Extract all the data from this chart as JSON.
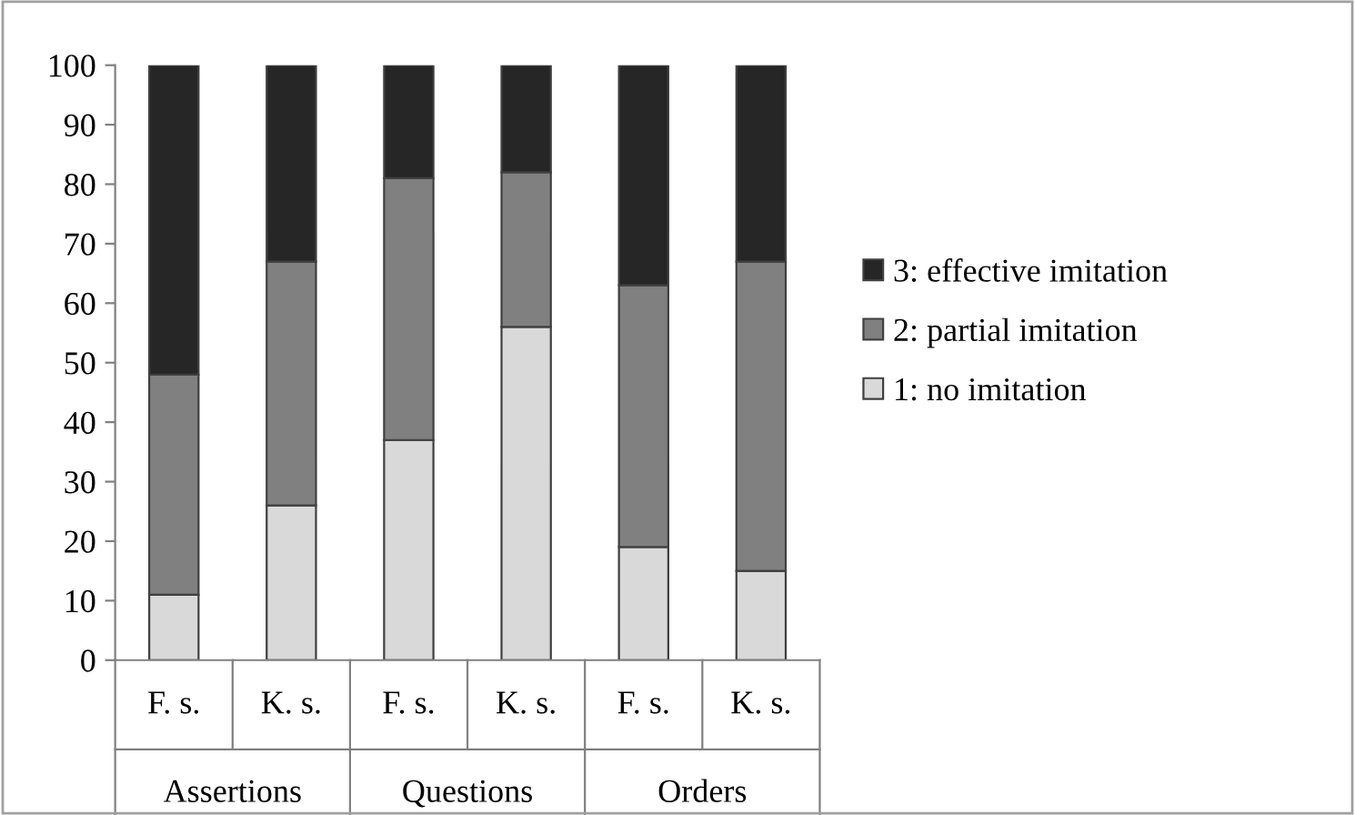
{
  "chart_data": {
    "type": "bar",
    "stacked": true,
    "categories": [
      "F. s.",
      "K. s.",
      "F. s.",
      "K. s.",
      "F. s.",
      "K. s."
    ],
    "annotations": [
      "Assertions",
      "Questions",
      "Orders"
    ],
    "series": [
      {
        "name": "1: no imitation",
        "color": "#d9d9d9",
        "values": [
          11,
          26,
          37,
          56,
          19,
          15
        ]
      },
      {
        "name": "2: partial imitation",
        "color": "#808080",
        "values": [
          37,
          41,
          44,
          26,
          44,
          52
        ]
      },
      {
        "name": "3: effective imitation",
        "color": "#262626",
        "values": [
          52,
          33,
          19,
          18,
          37,
          33
        ]
      }
    ],
    "ylim": [
      0,
      100
    ],
    "yticks": [
      0,
      10,
      20,
      30,
      40,
      50,
      60,
      70,
      80,
      90,
      100
    ],
    "grid": false,
    "legend": "right"
  }
}
